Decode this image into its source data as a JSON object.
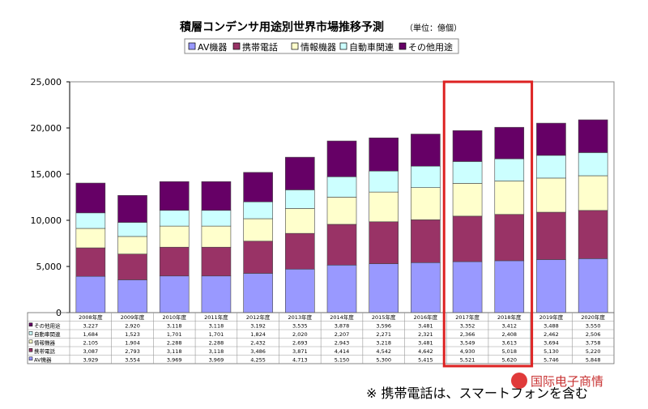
{
  "chart_data": {
    "type": "bar",
    "stacked": true,
    "title": "積層コンデンサ用途別世界市場推移予測",
    "unit_label": "（単位：億個）",
    "categories": [
      "2008年度",
      "2009年度",
      "2010年度",
      "2011年度",
      "2012年度",
      "2013年度",
      "2014年度",
      "2015年度",
      "2016年度",
      "2017年度",
      "2018年度",
      "2019年度",
      "2020年度"
    ],
    "series": [
      {
        "name": "AV機器",
        "color": "#9999ff",
        "values": [
          3929,
          3554,
          3969,
          3969,
          4255,
          4713,
          5150,
          5300,
          5415,
          5521,
          5620,
          5746,
          5848
        ]
      },
      {
        "name": "携帯電話",
        "color": "#993366",
        "values": [
          3087,
          2793,
          3118,
          3118,
          3486,
          3871,
          4414,
          4542,
          4642,
          4930,
          5018,
          5130,
          5220
        ]
      },
      {
        "name": "情報機器",
        "color": "#ffffcc",
        "values": [
          2105,
          1904,
          2288,
          2288,
          2432,
          2693,
          2943,
          3218,
          3481,
          3549,
          3613,
          3694,
          3758
        ]
      },
      {
        "name": "自動車関連",
        "color": "#ccffff",
        "values": [
          1684,
          1523,
          1701,
          1701,
          1824,
          2020,
          2207,
          2271,
          2321,
          2366,
          2408,
          2462,
          2506
        ]
      },
      {
        "name": "その他用途",
        "color": "#660066",
        "values": [
          3227,
          2920,
          3118,
          3118,
          3192,
          3535,
          3878,
          3596,
          3481,
          3352,
          3412,
          3488,
          3550
        ]
      }
    ],
    "table_rows": [
      {
        "label": "その他用途",
        "values": [
          "3,227",
          "2,920",
          "3,118",
          "3,118",
          "3,192",
          "3,535",
          "3,878",
          "3,596",
          "3,481",
          "3,352",
          "3,412",
          "3,488",
          "3,550"
        ]
      },
      {
        "label": "自動車関連",
        "values": [
          "1,684",
          "1,523",
          "1,701",
          "1,701",
          "1,824",
          "2,020",
          "2,207",
          "2,271",
          "2,321",
          "2,366",
          "2,408",
          "2,462",
          "2,506"
        ]
      },
      {
        "label": "情報機器",
        "values": [
          "2,105",
          "1,904",
          "2,288",
          "2,288",
          "2,432",
          "2,693",
          "2,943",
          "3,218",
          "3,481",
          "3,549",
          "3,613",
          "3,694",
          "3,758"
        ]
      },
      {
        "label": "携帯電話",
        "values": [
          "3,087",
          "2,793",
          "3,118",
          "3,118",
          "3,486",
          "3,871",
          "4,414",
          "4,542",
          "4,642",
          "4,930",
          "5,018",
          "5,130",
          "5,220"
        ]
      },
      {
        "label": "AV機器",
        "values": [
          "3,929",
          "3,554",
          "3,969",
          "3,969",
          "4,255",
          "4,713",
          "5,150",
          "5,300",
          "5,415",
          "5,521",
          "5,620",
          "5,746",
          "5,848"
        ]
      }
    ],
    "ylim": [
      0,
      25000
    ],
    "yticks": [
      "0",
      "5,000",
      "10,000",
      "15,000",
      "20,000",
      "25,000"
    ],
    "ytick_values": [
      0,
      5000,
      10000,
      15000,
      20000,
      25000
    ],
    "grid": false,
    "legend_position": "top",
    "highlight": {
      "categories": [
        "2017年度",
        "2018年度"
      ],
      "color": "#dd2222"
    },
    "note": "※ 携帯電話は、スマートフォンを含む",
    "watermark": "国际电子商情"
  }
}
